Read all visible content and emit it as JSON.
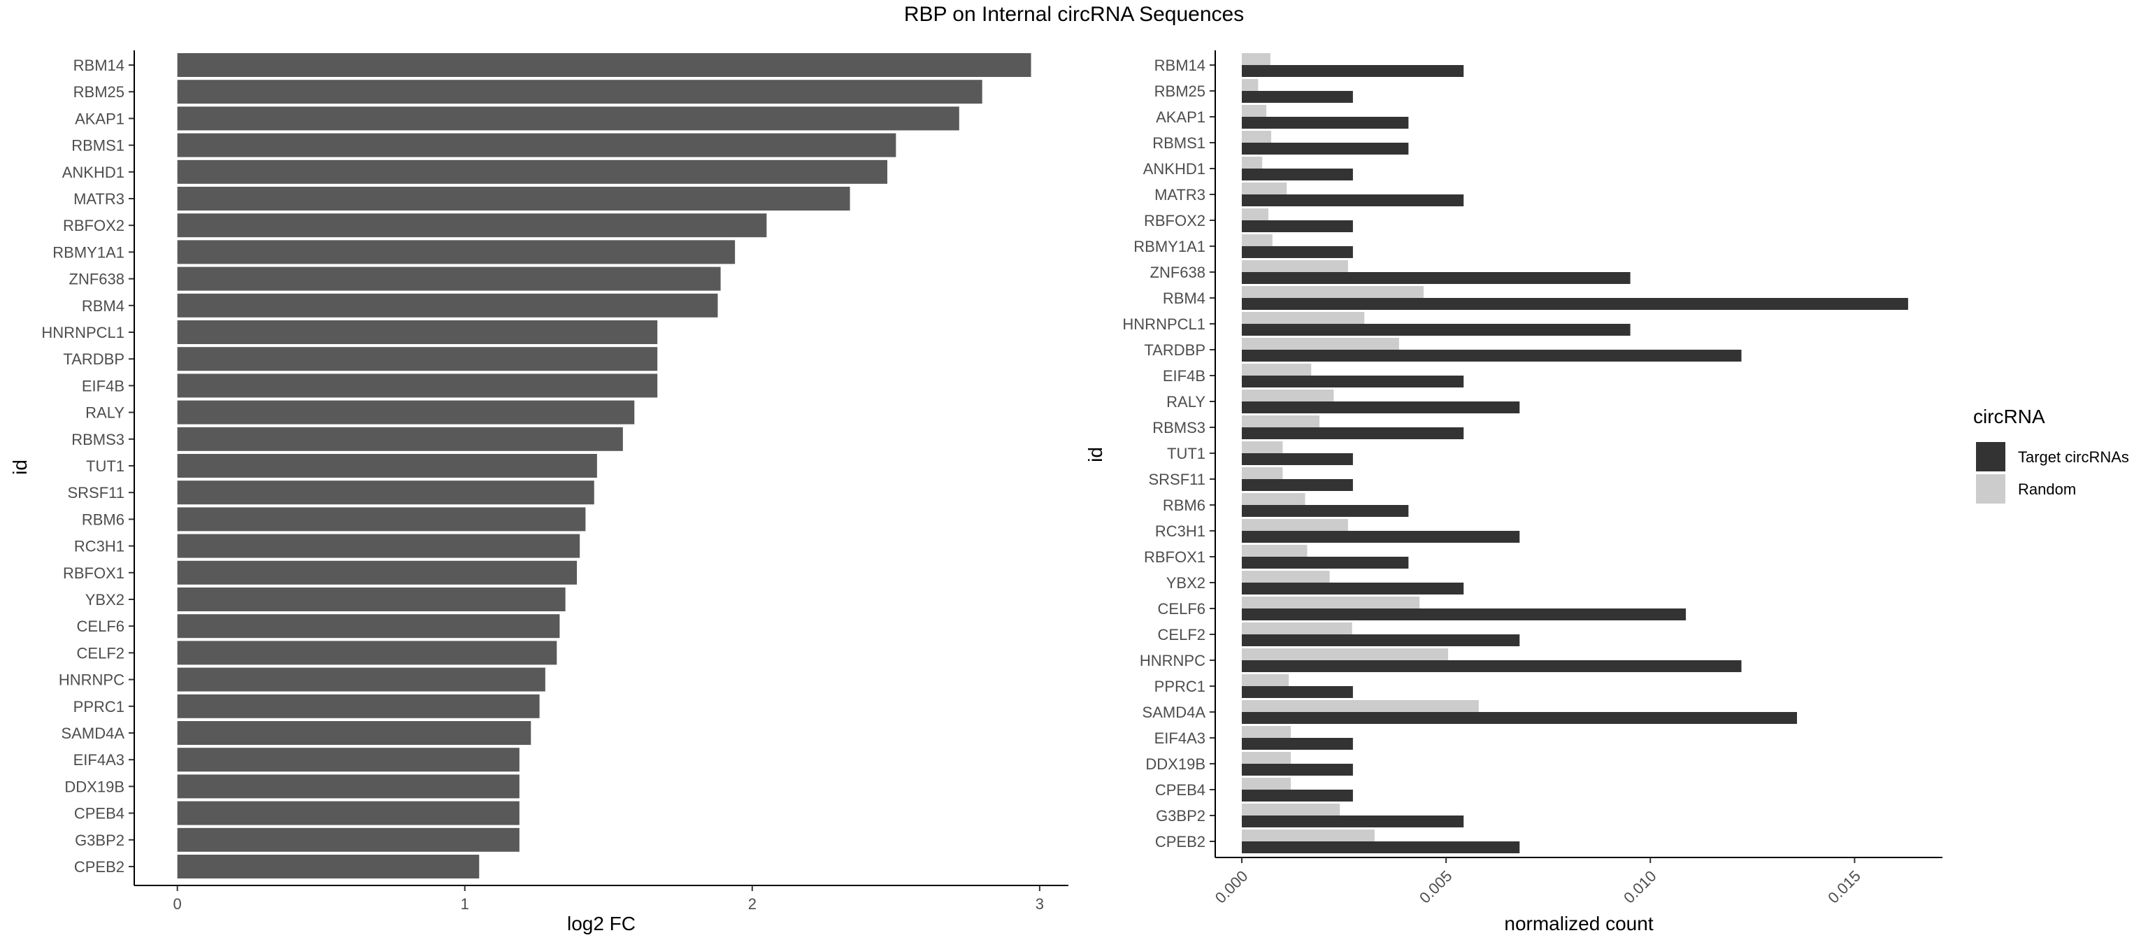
{
  "title": "RBP on Internal circRNA Sequences",
  "colors": {
    "fc_bar": "#595959",
    "target": "#333333",
    "random": "#cccccc",
    "axis": "#000000",
    "tick_text": "#4d4d4d"
  },
  "chart_data": [
    {
      "type": "bar",
      "orientation": "horizontal",
      "categories": [
        "RBM14",
        "RBM25",
        "AKAP1",
        "RBMS1",
        "ANKHD1",
        "MATR3",
        "RBFOX2",
        "RBMY1A1",
        "ZNF638",
        "RBM4",
        "HNRNPCL1",
        "TARDBP",
        "EIF4B",
        "RALY",
        "RBMS3",
        "TUT1",
        "SRSF11",
        "RBM6",
        "RC3H1",
        "RBFOX1",
        "YBX2",
        "CELF6",
        "CELF2",
        "HNRNPC",
        "PPRC1",
        "SAMD4A",
        "EIF4A3",
        "DDX19B",
        "CPEB4",
        "G3BP2",
        "CPEB2"
      ],
      "values": [
        2.97,
        2.8,
        2.72,
        2.5,
        2.47,
        2.34,
        2.05,
        1.94,
        1.89,
        1.88,
        1.67,
        1.67,
        1.67,
        1.59,
        1.55,
        1.46,
        1.45,
        1.42,
        1.4,
        1.39,
        1.35,
        1.33,
        1.32,
        1.28,
        1.26,
        1.23,
        1.19,
        1.19,
        1.19,
        1.19,
        1.05
      ],
      "xlabel": "log2 FC",
      "ylabel": "id",
      "xlim": [
        -0.15,
        3.1
      ],
      "x_ticks": [
        "0",
        "1",
        "2",
        "3"
      ],
      "grid": false
    },
    {
      "type": "bar",
      "orientation": "horizontal",
      "categories": [
        "RBM14",
        "RBM25",
        "AKAP1",
        "RBMS1",
        "ANKHD1",
        "MATR3",
        "RBFOX2",
        "RBMY1A1",
        "ZNF638",
        "RBM4",
        "HNRNPCL1",
        "TARDBP",
        "EIF4B",
        "RALY",
        "RBMS3",
        "TUT1",
        "SRSF11",
        "RBM6",
        "RC3H1",
        "RBFOX1",
        "YBX2",
        "CELF6",
        "CELF2",
        "HNRNPC",
        "PPRC1",
        "SAMD4A",
        "EIF4A3",
        "DDX19B",
        "CPEB4",
        "G3BP2",
        "CPEB2"
      ],
      "series": [
        {
          "name": "Target circRNAs",
          "values": [
            0.00543,
            0.00272,
            0.00408,
            0.00408,
            0.00272,
            0.00543,
            0.00272,
            0.00272,
            0.00951,
            0.01631,
            0.00951,
            0.01223,
            0.00543,
            0.0068,
            0.00543,
            0.00272,
            0.00272,
            0.00408,
            0.0068,
            0.00408,
            0.00543,
            0.01087,
            0.0068,
            0.01223,
            0.00272,
            0.01359,
            0.00272,
            0.00272,
            0.00272,
            0.00543,
            0.0068
          ]
        },
        {
          "name": "Random",
          "values": [
            0.0007,
            0.0004,
            0.0006,
            0.00072,
            0.0005,
            0.0011,
            0.00065,
            0.00075,
            0.0026,
            0.00445,
            0.003,
            0.00385,
            0.0017,
            0.00225,
            0.0019,
            0.001,
            0.001,
            0.00155,
            0.0026,
            0.0016,
            0.00215,
            0.00435,
            0.0027,
            0.00505,
            0.00115,
            0.0058,
            0.0012,
            0.0012,
            0.0012,
            0.0024,
            0.00325
          ]
        }
      ],
      "xlabel": "normalized count",
      "ylabel": "id",
      "xlim": [
        -0.00065,
        0.01715
      ],
      "x_ticks": [
        "0.000",
        "0.005",
        "0.010",
        "0.015"
      ],
      "legend": {
        "title": "circRNA",
        "position": "right"
      },
      "grid": false
    }
  ]
}
